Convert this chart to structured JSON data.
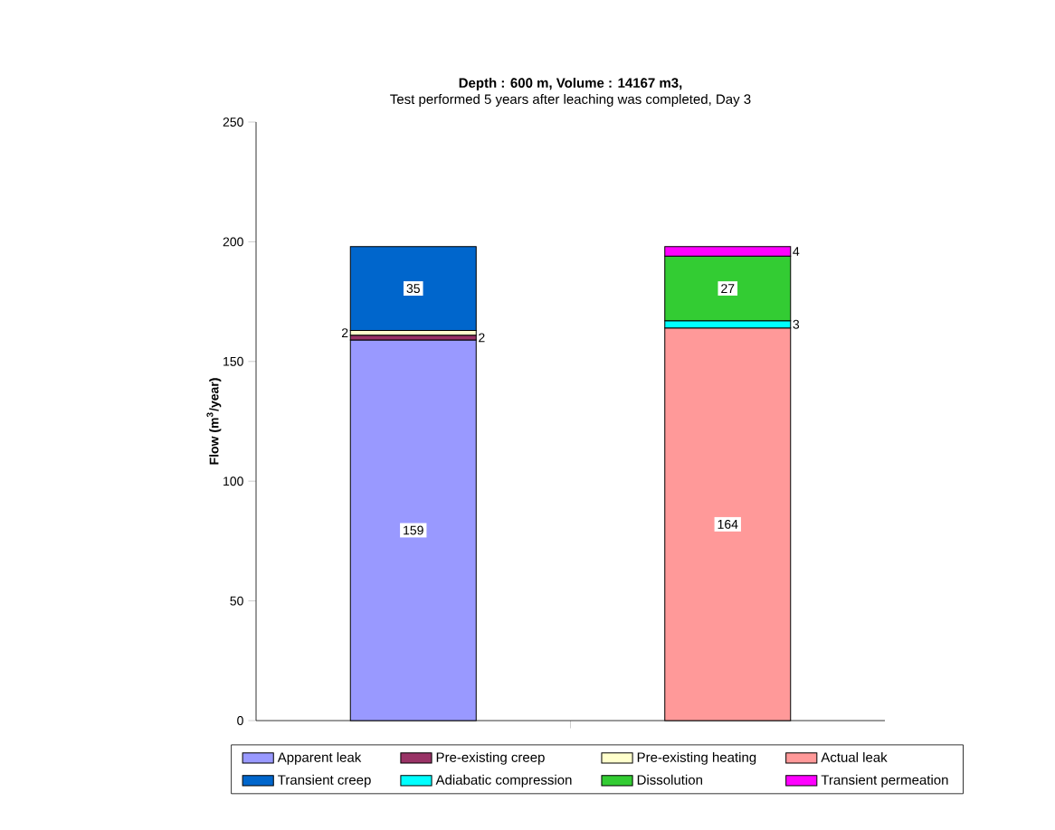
{
  "chart_data": {
    "type": "bar",
    "stacked": true,
    "title": "Depth : 600 m, Volume : 14167 m3,",
    "subtitle": "Test performed 5 years after leaching was completed, Day 3",
    "ylabel": "Flow (m$^{3}$/year)",
    "categories": [
      null,
      null
    ],
    "ylim": [
      0,
      250
    ],
    "yticks": [
      0,
      50,
      100,
      150,
      200,
      250
    ],
    "grid": false,
    "legend": "bottom",
    "series": [
      {
        "name": "Apparent leak",
        "color": "#9999ff",
        "values": [
          159,
          null
        ],
        "value_labels": [
          "159",
          null
        ]
      },
      {
        "name": "Pre-existing creep",
        "color": "#993366",
        "values": [
          2,
          null
        ],
        "value_labels": [
          "2",
          null
        ]
      },
      {
        "name": "Pre-existing heating",
        "color": "#ffffcc",
        "values": [
          2,
          null
        ],
        "value_labels": [
          "2",
          null
        ]
      },
      {
        "name": "Actual leak",
        "color": "#ff9999",
        "values": [
          null,
          164
        ],
        "value_labels": [
          null,
          "164"
        ]
      },
      {
        "name": "Transient creep",
        "color": "#0066cc",
        "values": [
          35,
          null
        ],
        "value_labels": [
          "35",
          null
        ]
      },
      {
        "name": "Adiabatic compression",
        "color": "#00ffff",
        "values": [
          null,
          3
        ],
        "value_labels": [
          null,
          "3"
        ]
      },
      {
        "name": "Dissolution",
        "color": "#33cc33",
        "values": [
          null,
          27
        ],
        "value_labels": [
          null,
          "27"
        ]
      },
      {
        "name": "Transient permeation",
        "color": "#ff00ff",
        "values": [
          null,
          4
        ],
        "value_labels": [
          null,
          "4"
        ]
      }
    ]
  }
}
